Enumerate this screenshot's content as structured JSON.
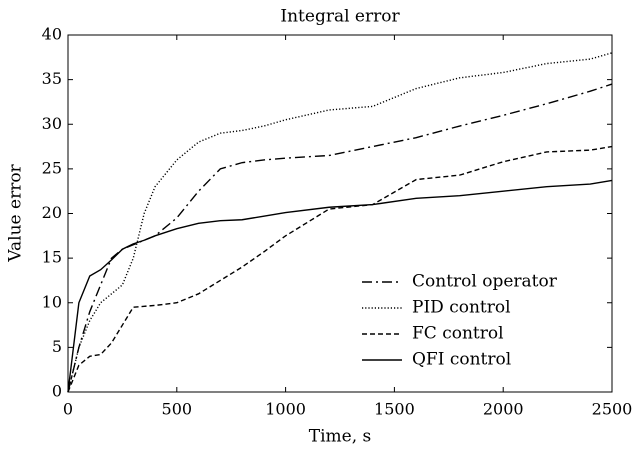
{
  "chart_data": {
    "type": "line",
    "title": "Integral error",
    "xlabel": "Time, s",
    "ylabel": "Value error",
    "x": [
      0,
      50,
      100,
      150,
      200,
      250,
      300,
      350,
      400,
      500,
      600,
      700,
      800,
      900,
      1000,
      1200,
      1400,
      1600,
      1800,
      2000,
      2200,
      2400,
      2500
    ],
    "series": [
      {
        "name": "Control operator",
        "color": "#000000",
        "linestyle": "dashdot",
        "values": [
          0,
          5,
          9,
          12,
          15,
          16,
          16.5,
          17,
          17.5,
          19.5,
          22.5,
          25,
          25.7,
          26,
          26.2,
          26.5,
          27.5,
          28.5,
          29.8,
          31,
          32.3,
          33.7,
          34.5
        ]
      },
      {
        "name": "PID control",
        "color": "#000000",
        "linestyle": "dotted",
        "values": [
          0,
          5,
          8,
          10,
          11,
          12,
          15,
          20,
          23,
          26,
          28,
          29,
          29.3,
          29.8,
          30.5,
          31.6,
          32,
          34,
          35.2,
          35.8,
          36.8,
          37.3,
          38
        ]
      },
      {
        "name": "FC control",
        "color": "#000000",
        "linestyle": "dashed",
        "values": [
          0,
          3,
          4,
          4.2,
          5.5,
          7.5,
          9.5,
          9.6,
          9.7,
          10,
          11,
          12.5,
          14,
          15.7,
          17.5,
          20.5,
          21,
          23.8,
          24.3,
          25.8,
          26.9,
          27.1,
          27.5
        ]
      },
      {
        "name": "QFI control",
        "color": "#000000",
        "linestyle": "solid",
        "values": [
          0,
          10,
          13,
          13.7,
          14.8,
          16,
          16.6,
          17,
          17.5,
          18.3,
          18.9,
          19.2,
          19.3,
          19.7,
          20.1,
          20.7,
          21,
          21.7,
          22,
          22.5,
          23,
          23.3,
          23.7
        ]
      }
    ],
    "xlim": [
      0,
      2500
    ],
    "ylim": [
      0,
      40
    ],
    "xticks": [
      0,
      500,
      1000,
      1500,
      2000,
      2500
    ],
    "yticks": [
      0,
      5,
      10,
      15,
      20,
      25,
      30,
      35,
      40
    ],
    "legend": "lower right"
  }
}
